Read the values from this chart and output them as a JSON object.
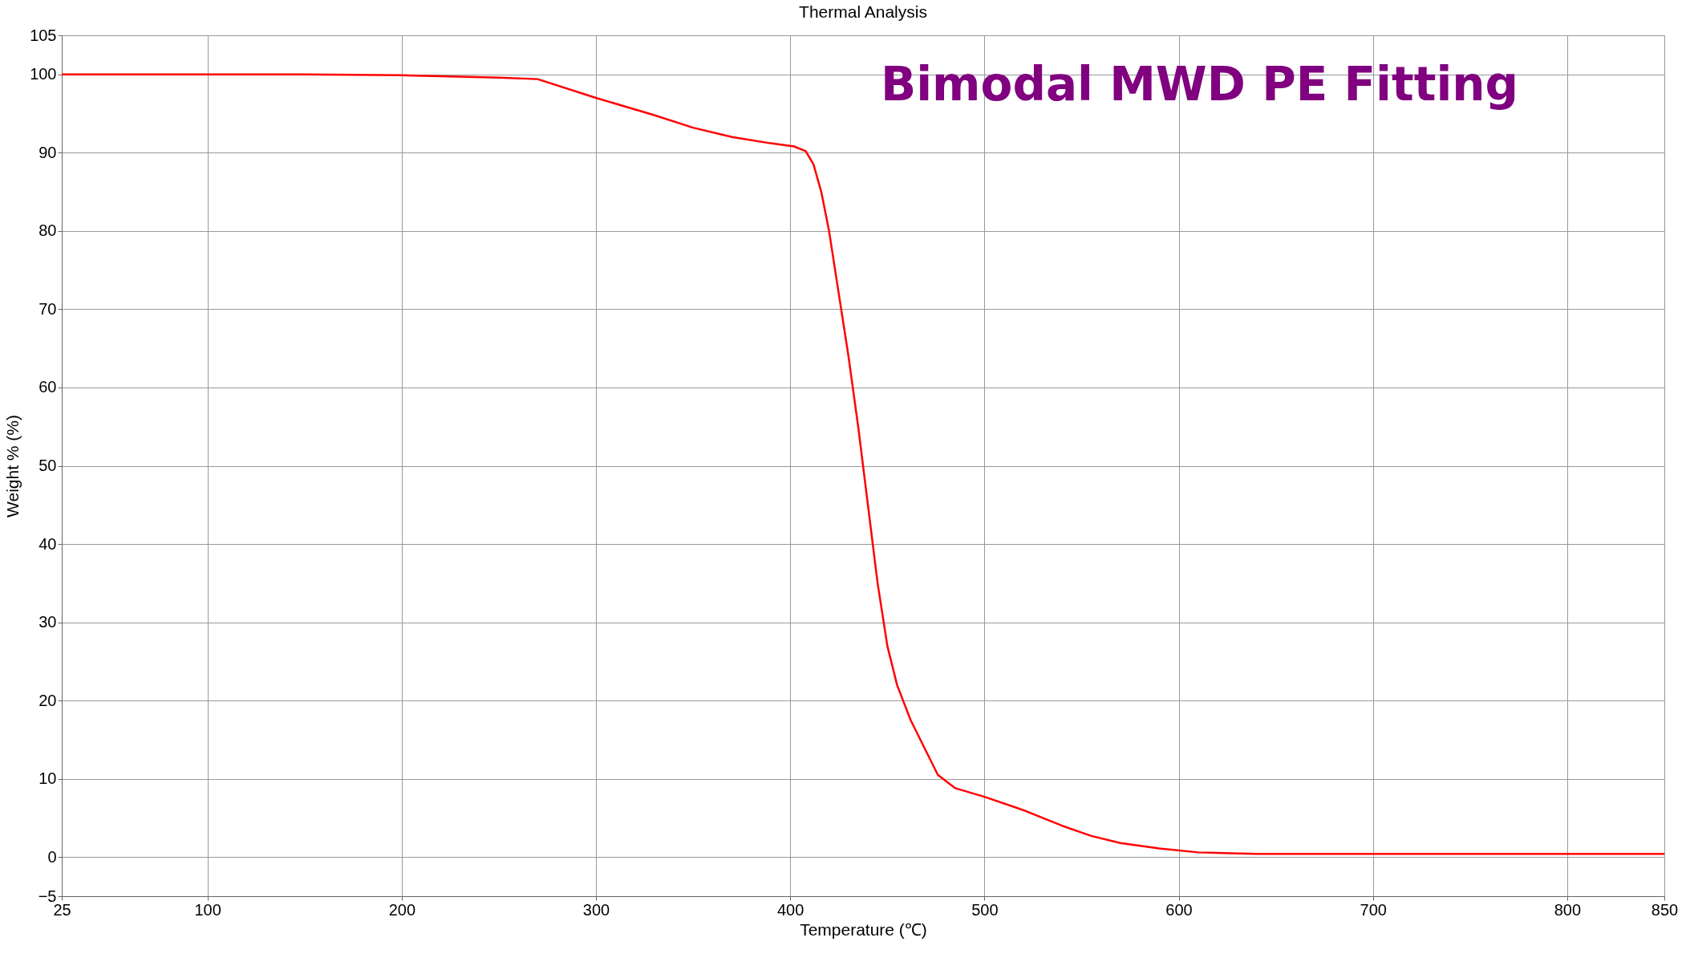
{
  "chart_data": {
    "type": "line",
    "title": "Thermal Analysis",
    "xlabel": "Temperature (℃)",
    "ylabel": "Weight % (%)",
    "annotations": [
      "Bimodal MWD PE Fitting"
    ],
    "x": [
      25,
      150,
      200,
      250,
      270,
      300,
      330,
      350,
      370,
      390,
      402,
      408,
      412,
      416,
      420,
      425,
      430,
      435,
      440,
      445,
      450,
      455,
      462,
      470,
      476,
      485,
      500,
      520,
      540,
      555,
      570,
      590,
      610,
      640,
      850
    ],
    "series": [
      {
        "color": "#ff0000",
        "values": [
          100,
          100,
          99.9,
          99.6,
          99.4,
          97,
          94.8,
          93.2,
          92,
          91.2,
          90.8,
          90.2,
          88.5,
          85,
          80,
          72,
          64,
          55,
          45,
          35,
          27,
          22,
          17.5,
          13.5,
          10.5,
          8.8,
          7.7,
          6,
          4,
          2.7,
          1.8,
          1.1,
          0.6,
          0.4,
          0.4
        ]
      }
    ],
    "xlim": [
      25,
      850
    ],
    "xticks": [
      25,
      100,
      200,
      300,
      400,
      500,
      600,
      700,
      800,
      850
    ],
    "ylim": [
      -5,
      105
    ],
    "yticks": [
      -5,
      0,
      10,
      20,
      30,
      40,
      50,
      60,
      70,
      80,
      90,
      100,
      105
    ],
    "grid": true,
    "legend": false,
    "marker": "none",
    "line_style": "solid"
  }
}
